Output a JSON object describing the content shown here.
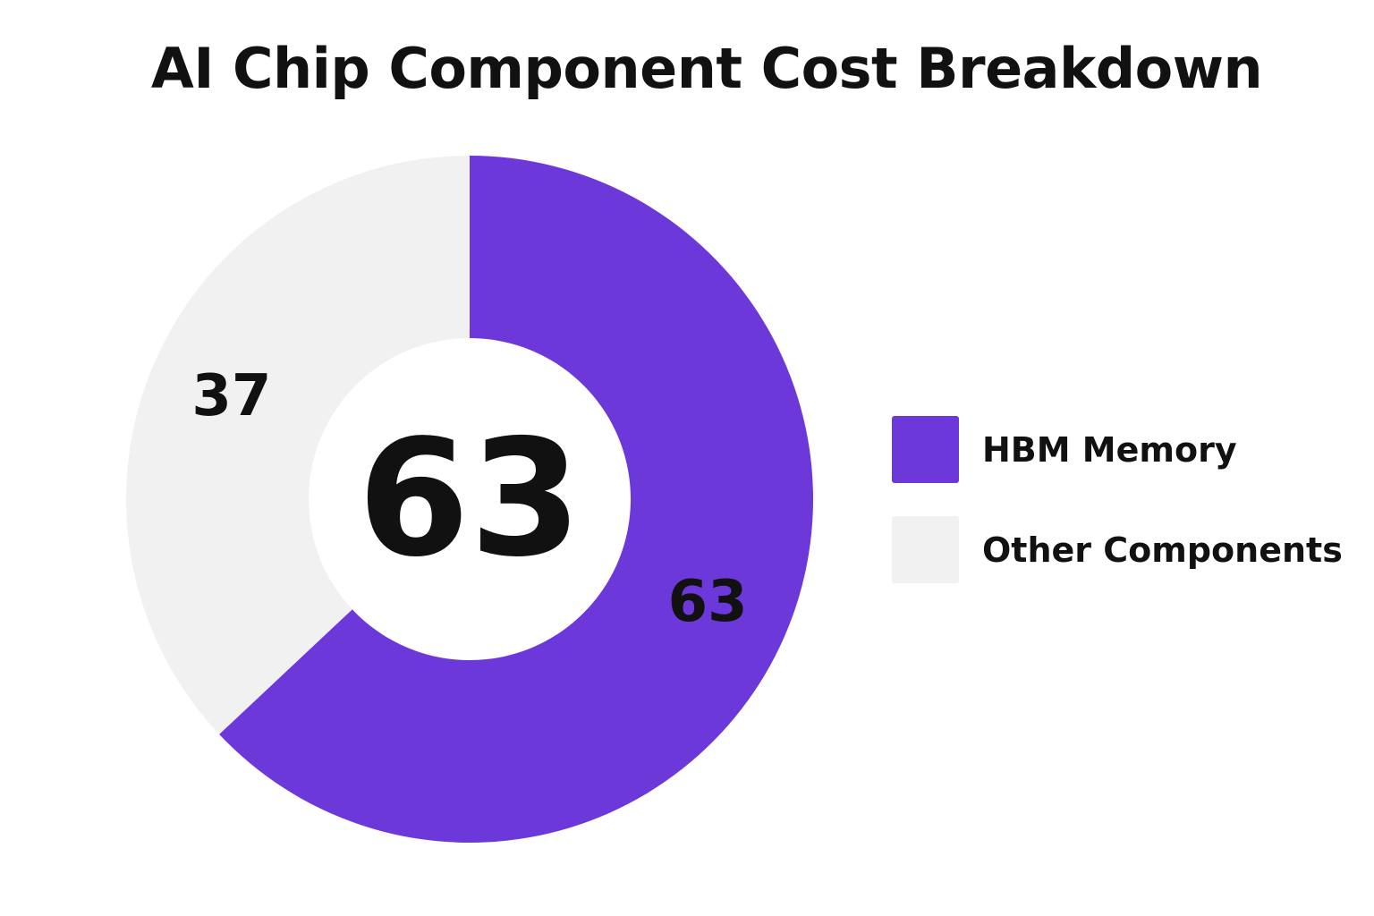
{
  "chart_data": {
    "type": "pie",
    "title": "AI Chip Component Cost Breakdown",
    "categories": [
      "HBM Memory",
      "Other Components"
    ],
    "values": [
      63,
      37
    ],
    "colors": [
      "#6d38d9",
      "#f1f1f1"
    ],
    "center_value": "63",
    "slice_labels": [
      "63",
      "37"
    ],
    "legend_position": "right",
    "donut": true
  }
}
